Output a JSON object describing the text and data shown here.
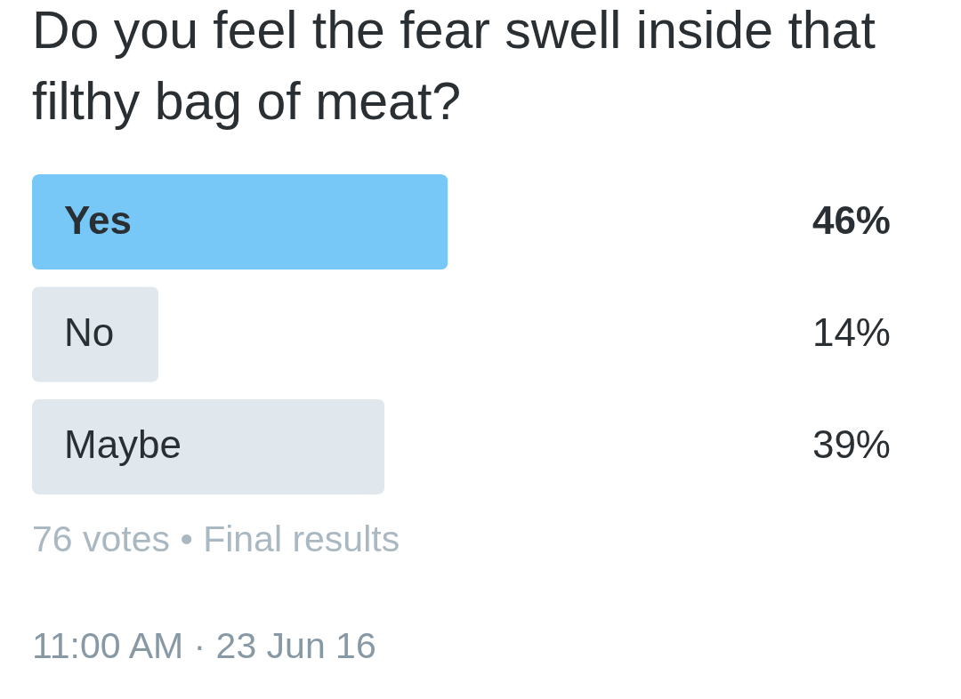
{
  "chart_data": {
    "type": "bar",
    "orientation": "horizontal",
    "title": "Do you feel the fear swell inside that filthy bag of meat?",
    "categories": [
      "Yes",
      "No",
      "Maybe"
    ],
    "values": [
      46,
      14,
      39
    ],
    "colors": [
      "#77c8f7",
      "#e1e8ed",
      "#e1e8ed"
    ],
    "value_labels": [
      "46%",
      "14%",
      "39%"
    ],
    "tick_labels": "y",
    "annotations": [
      "76 votes • Final results",
      "11:00 AM · 23 Jun 16"
    ]
  }
}
